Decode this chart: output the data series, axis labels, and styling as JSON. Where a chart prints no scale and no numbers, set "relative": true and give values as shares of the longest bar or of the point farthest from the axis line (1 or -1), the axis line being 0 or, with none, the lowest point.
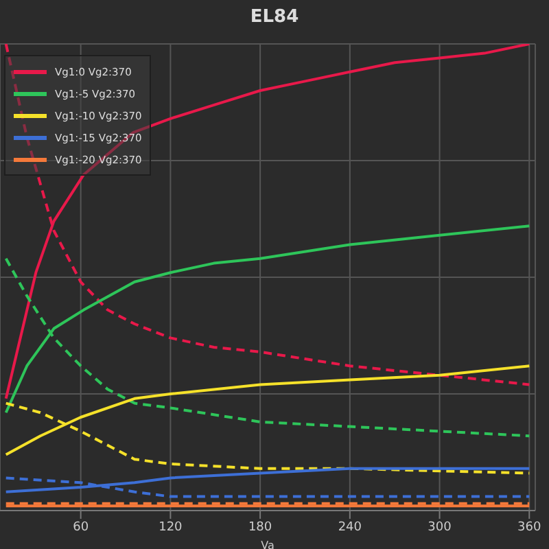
{
  "chart_data": {
    "type": "line",
    "title": "EL84",
    "xlabel": "Va",
    "relative": true,
    "xlim": [
      6,
      364
    ],
    "xticks": [
      60,
      120,
      180,
      240,
      300,
      360
    ],
    "grid": true,
    "legend": "top left",
    "marker": "none",
    "series": [
      {
        "name": "Vg1:0 Vg2:370",
        "color": "#e8194a",
        "line_style": "solid",
        "x": [
          10,
          30,
          42,
          62,
          95,
          120,
          150,
          180,
          210,
          240,
          270,
          300,
          330,
          360
        ],
        "values": [
          0.24,
          0.51,
          0.62,
          0.72,
          0.81,
          0.84,
          0.87,
          0.9,
          0.92,
          0.94,
          0.96,
          0.97,
          0.98,
          1.0
        ]
      },
      {
        "color": "#e8194a",
        "line_style": "dashed",
        "x": [
          10,
          24,
          42,
          60,
          78,
          96,
          120,
          149,
          180,
          240,
          300,
          360
        ],
        "values": [
          1.0,
          0.8,
          0.6,
          0.49,
          0.43,
          0.4,
          0.37,
          0.35,
          0.34,
          0.31,
          0.29,
          0.27
        ]
      },
      {
        "name": "Vg1:-5 Vg2:370",
        "color": "#2ec55a",
        "line_style": "solid",
        "x": [
          10,
          24,
          42,
          62,
          96,
          120,
          149,
          180,
          240,
          300,
          360
        ],
        "values": [
          0.21,
          0.31,
          0.39,
          0.43,
          0.49,
          0.51,
          0.53,
          0.54,
          0.57,
          0.59,
          0.61
        ]
      },
      {
        "color": "#2ec55a",
        "line_style": "dashed",
        "x": [
          10,
          24,
          42,
          60,
          78,
          96,
          120,
          180,
          240,
          300,
          360
        ],
        "values": [
          0.54,
          0.46,
          0.37,
          0.31,
          0.26,
          0.23,
          0.22,
          0.19,
          0.18,
          0.17,
          0.16
        ]
      },
      {
        "name": "Vg1:-10 Vg2:370",
        "color": "#f5e12a",
        "line_style": "solid",
        "x": [
          10,
          33,
          60,
          96,
          120,
          180,
          240,
          300,
          360
        ],
        "values": [
          0.12,
          0.16,
          0.2,
          0.24,
          0.25,
          0.27,
          0.28,
          0.29,
          0.31
        ]
      },
      {
        "color": "#f5e12a",
        "line_style": "dashed",
        "x": [
          10,
          33,
          60,
          78,
          96,
          120,
          180,
          240,
          360
        ],
        "values": [
          0.23,
          0.21,
          0.17,
          0.14,
          0.11,
          0.1,
          0.09,
          0.09,
          0.08
        ]
      },
      {
        "name": "Vg1:-15 Vg2:370",
        "color": "#3d6fd6",
        "line_style": "solid",
        "x": [
          10,
          60,
          96,
          120,
          180,
          240,
          360
        ],
        "values": [
          0.04,
          0.05,
          0.06,
          0.07,
          0.08,
          0.09,
          0.09
        ]
      },
      {
        "color": "#3d6fd6",
        "line_style": "dashed",
        "x": [
          10,
          60,
          96,
          120,
          180,
          360
        ],
        "values": [
          0.07,
          0.06,
          0.04,
          0.03,
          0.03,
          0.03
        ]
      },
      {
        "name": "Vg1:-20 Vg2:370",
        "color": "#f5793a",
        "line_style": "solid",
        "x": [
          10,
          360
        ],
        "values": [
          0.01,
          0.01
        ]
      },
      {
        "color": "#f5793a",
        "line_style": "dashed",
        "x": [
          10,
          360
        ],
        "values": [
          0.015,
          0.015
        ]
      }
    ]
  }
}
